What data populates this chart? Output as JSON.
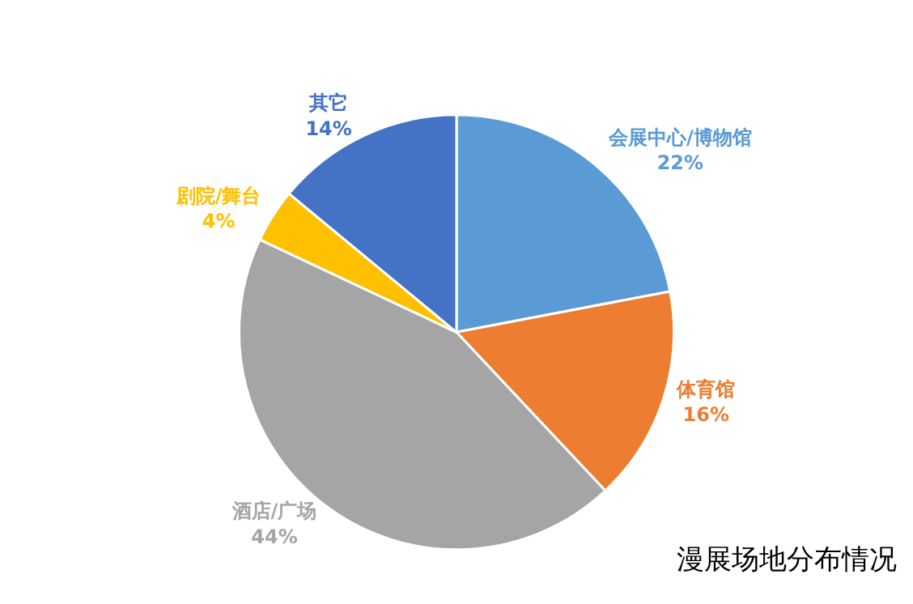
{
  "chart_data": {
    "type": "pie",
    "title": "漫展场地分布情况",
    "categories": [
      "会展中心/博物馆",
      "体育馆",
      "酒店/广场",
      "剧院/舞台",
      "其它"
    ],
    "values": [
      22,
      16,
      44,
      4,
      14
    ],
    "value_labels": [
      "22%",
      "16%",
      "44%",
      "4%",
      "14%"
    ],
    "colors": [
      "#5b9bd5",
      "#ed7d31",
      "#a5a5a5",
      "#ffc000",
      "#4472c4"
    ],
    "legend": false
  }
}
